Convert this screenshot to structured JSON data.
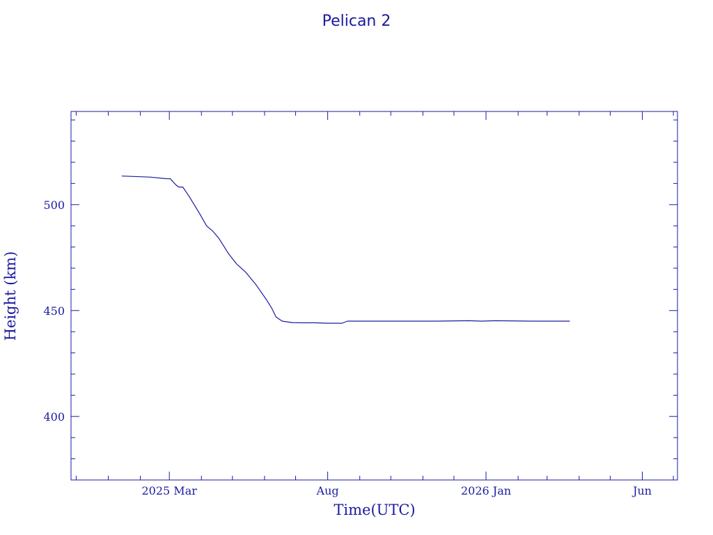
{
  "colors": {
    "ink": "#1a1aa0",
    "background": "#ffffff"
  },
  "chart_data": {
    "type": "line",
    "title": "Pelican 2",
    "xlabel": "Time(UTC)",
    "ylabel": "Height (km)",
    "xlim": [
      "2024-11-26",
      "2026-07-05"
    ],
    "ylim": [
      370,
      544
    ],
    "x_ticks": [
      {
        "date": "2025-03-01",
        "label": "2025 Mar"
      },
      {
        "date": "2025-08-01",
        "label": "Aug"
      },
      {
        "date": "2026-01-01",
        "label": "2026 Jan"
      },
      {
        "date": "2026-06-01",
        "label": "Jun"
      }
    ],
    "x_minor_step_months": 1,
    "y_ticks": [
      {
        "value": 400,
        "label": "400"
      },
      {
        "value": 450,
        "label": "450"
      },
      {
        "value": 500,
        "label": "500"
      }
    ],
    "y_minor_step": 10,
    "grid": false,
    "series": [
      {
        "x": [
          "2025-01-14",
          "2025-01-25",
          "2025-02-10",
          "2025-02-25",
          "2025-03-02",
          "2025-03-07",
          "2025-03-10",
          "2025-03-14",
          "2025-03-20",
          "2025-03-30",
          "2025-04-06",
          "2025-04-12",
          "2025-04-18",
          "2025-04-27",
          "2025-05-05",
          "2025-05-14",
          "2025-05-24",
          "2025-06-03",
          "2025-06-08",
          "2025-06-12",
          "2025-06-18",
          "2025-06-28",
          "2025-07-08",
          "2025-07-20",
          "2025-08-01",
          "2025-08-10",
          "2025-08-15",
          "2025-08-20",
          "2025-09-15",
          "2025-10-15",
          "2025-11-15",
          "2025-12-15",
          "2025-12-28",
          "2026-01-10",
          "2026-02-15",
          "2026-03-23"
        ],
        "y": [
          513.5,
          513.3,
          513.0,
          512.3,
          512.2,
          509.5,
          508.3,
          508.3,
          504.0,
          496.0,
          490.0,
          487.5,
          484.0,
          477.0,
          472.0,
          468.0,
          462.0,
          455.0,
          451.0,
          447.0,
          445.0,
          444.3,
          444.2,
          444.2,
          444.0,
          444.0,
          444.0,
          445.0,
          445.0,
          445.0,
          445.0,
          445.2,
          445.0,
          445.2,
          445.0,
          445.0
        ]
      }
    ]
  }
}
